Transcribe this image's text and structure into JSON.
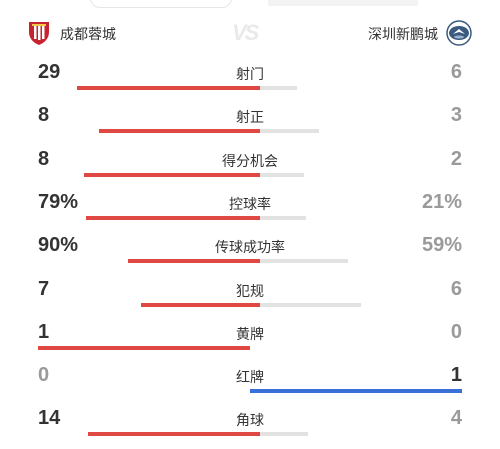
{
  "home": {
    "name": "成都蓉城",
    "badge_icon": "chengdu-rongcheng-crest-icon",
    "color": "#c62230"
  },
  "away": {
    "name": "深圳新鹏城",
    "badge_icon": "shenzhen-peng-city-crest-icon",
    "color": "#3a5a80"
  },
  "vs_text": "VS",
  "colors": {
    "home_bar": "#e04843",
    "away_bar_dim": "#e2e2e2",
    "away_bar_active": "#3b6fd8"
  },
  "stats": [
    {
      "label": "射门",
      "home": "29",
      "away": "6",
      "home_share": 0.83
    },
    {
      "label": "射正",
      "home": "8",
      "away": "3",
      "home_share": 0.73
    },
    {
      "label": "得分机会",
      "home": "8",
      "away": "2",
      "home_share": 0.8
    },
    {
      "label": "控球率",
      "home": "79%",
      "away": "21%",
      "home_share": 0.79
    },
    {
      "label": "传球成功率",
      "home": "90%",
      "away": "59%",
      "home_share": 0.6
    },
    {
      "label": "犯规",
      "home": "7",
      "away": "6",
      "home_share": 0.54
    },
    {
      "label": "黄牌",
      "home": "1",
      "away": "0",
      "home_share": 1.0
    },
    {
      "label": "红牌",
      "home": "0",
      "away": "1",
      "home_share": 0.0
    },
    {
      "label": "角球",
      "home": "14",
      "away": "4",
      "home_share": 0.78
    }
  ]
}
